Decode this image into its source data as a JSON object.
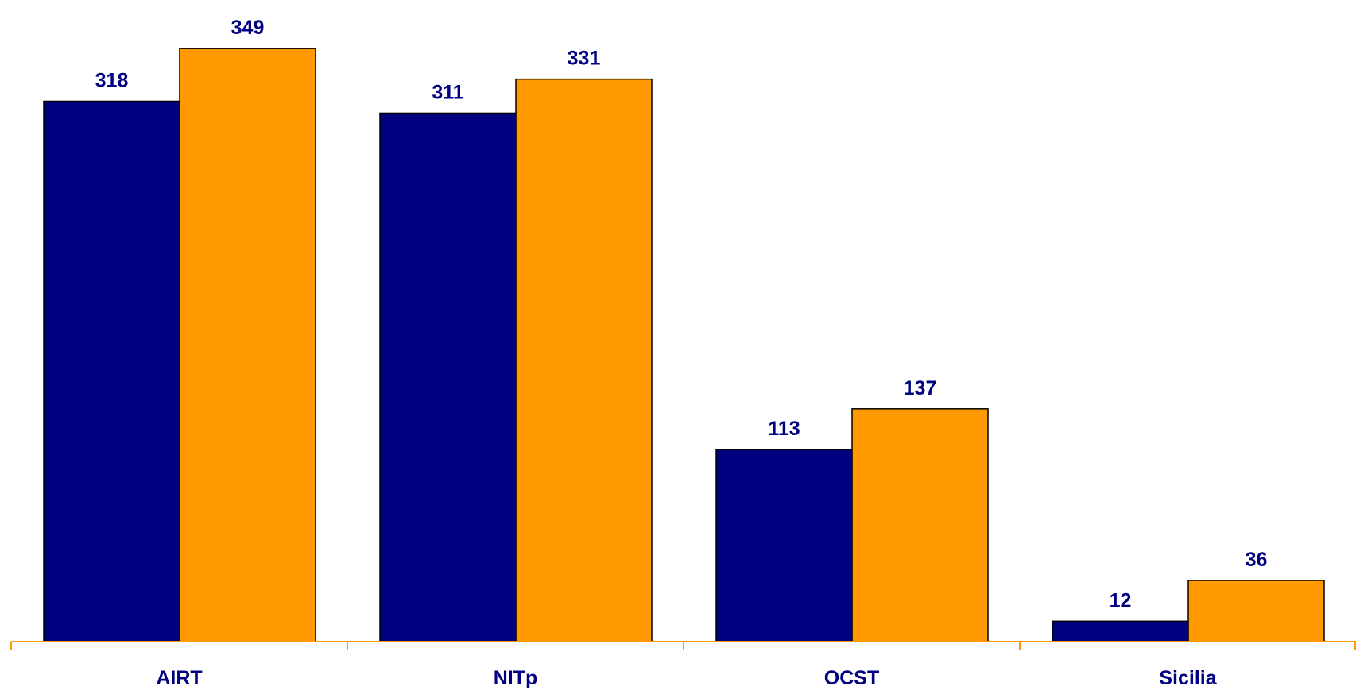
{
  "chart_data": {
    "type": "bar",
    "categories": [
      "AIRT",
      "NITp",
      "OCST",
      "Sicilia"
    ],
    "series": [
      {
        "values": [
          318,
          311,
          113,
          12
        ],
        "color": "#000080"
      },
      {
        "values": [
          349,
          331,
          137,
          36
        ],
        "color": "#FF9900"
      }
    ],
    "title": "",
    "xlabel": "",
    "ylabel": "",
    "ylim": [
      0,
      350
    ],
    "grid": false,
    "legend": "none",
    "axis_color": "#FF9900",
    "label_color": "#000080"
  }
}
